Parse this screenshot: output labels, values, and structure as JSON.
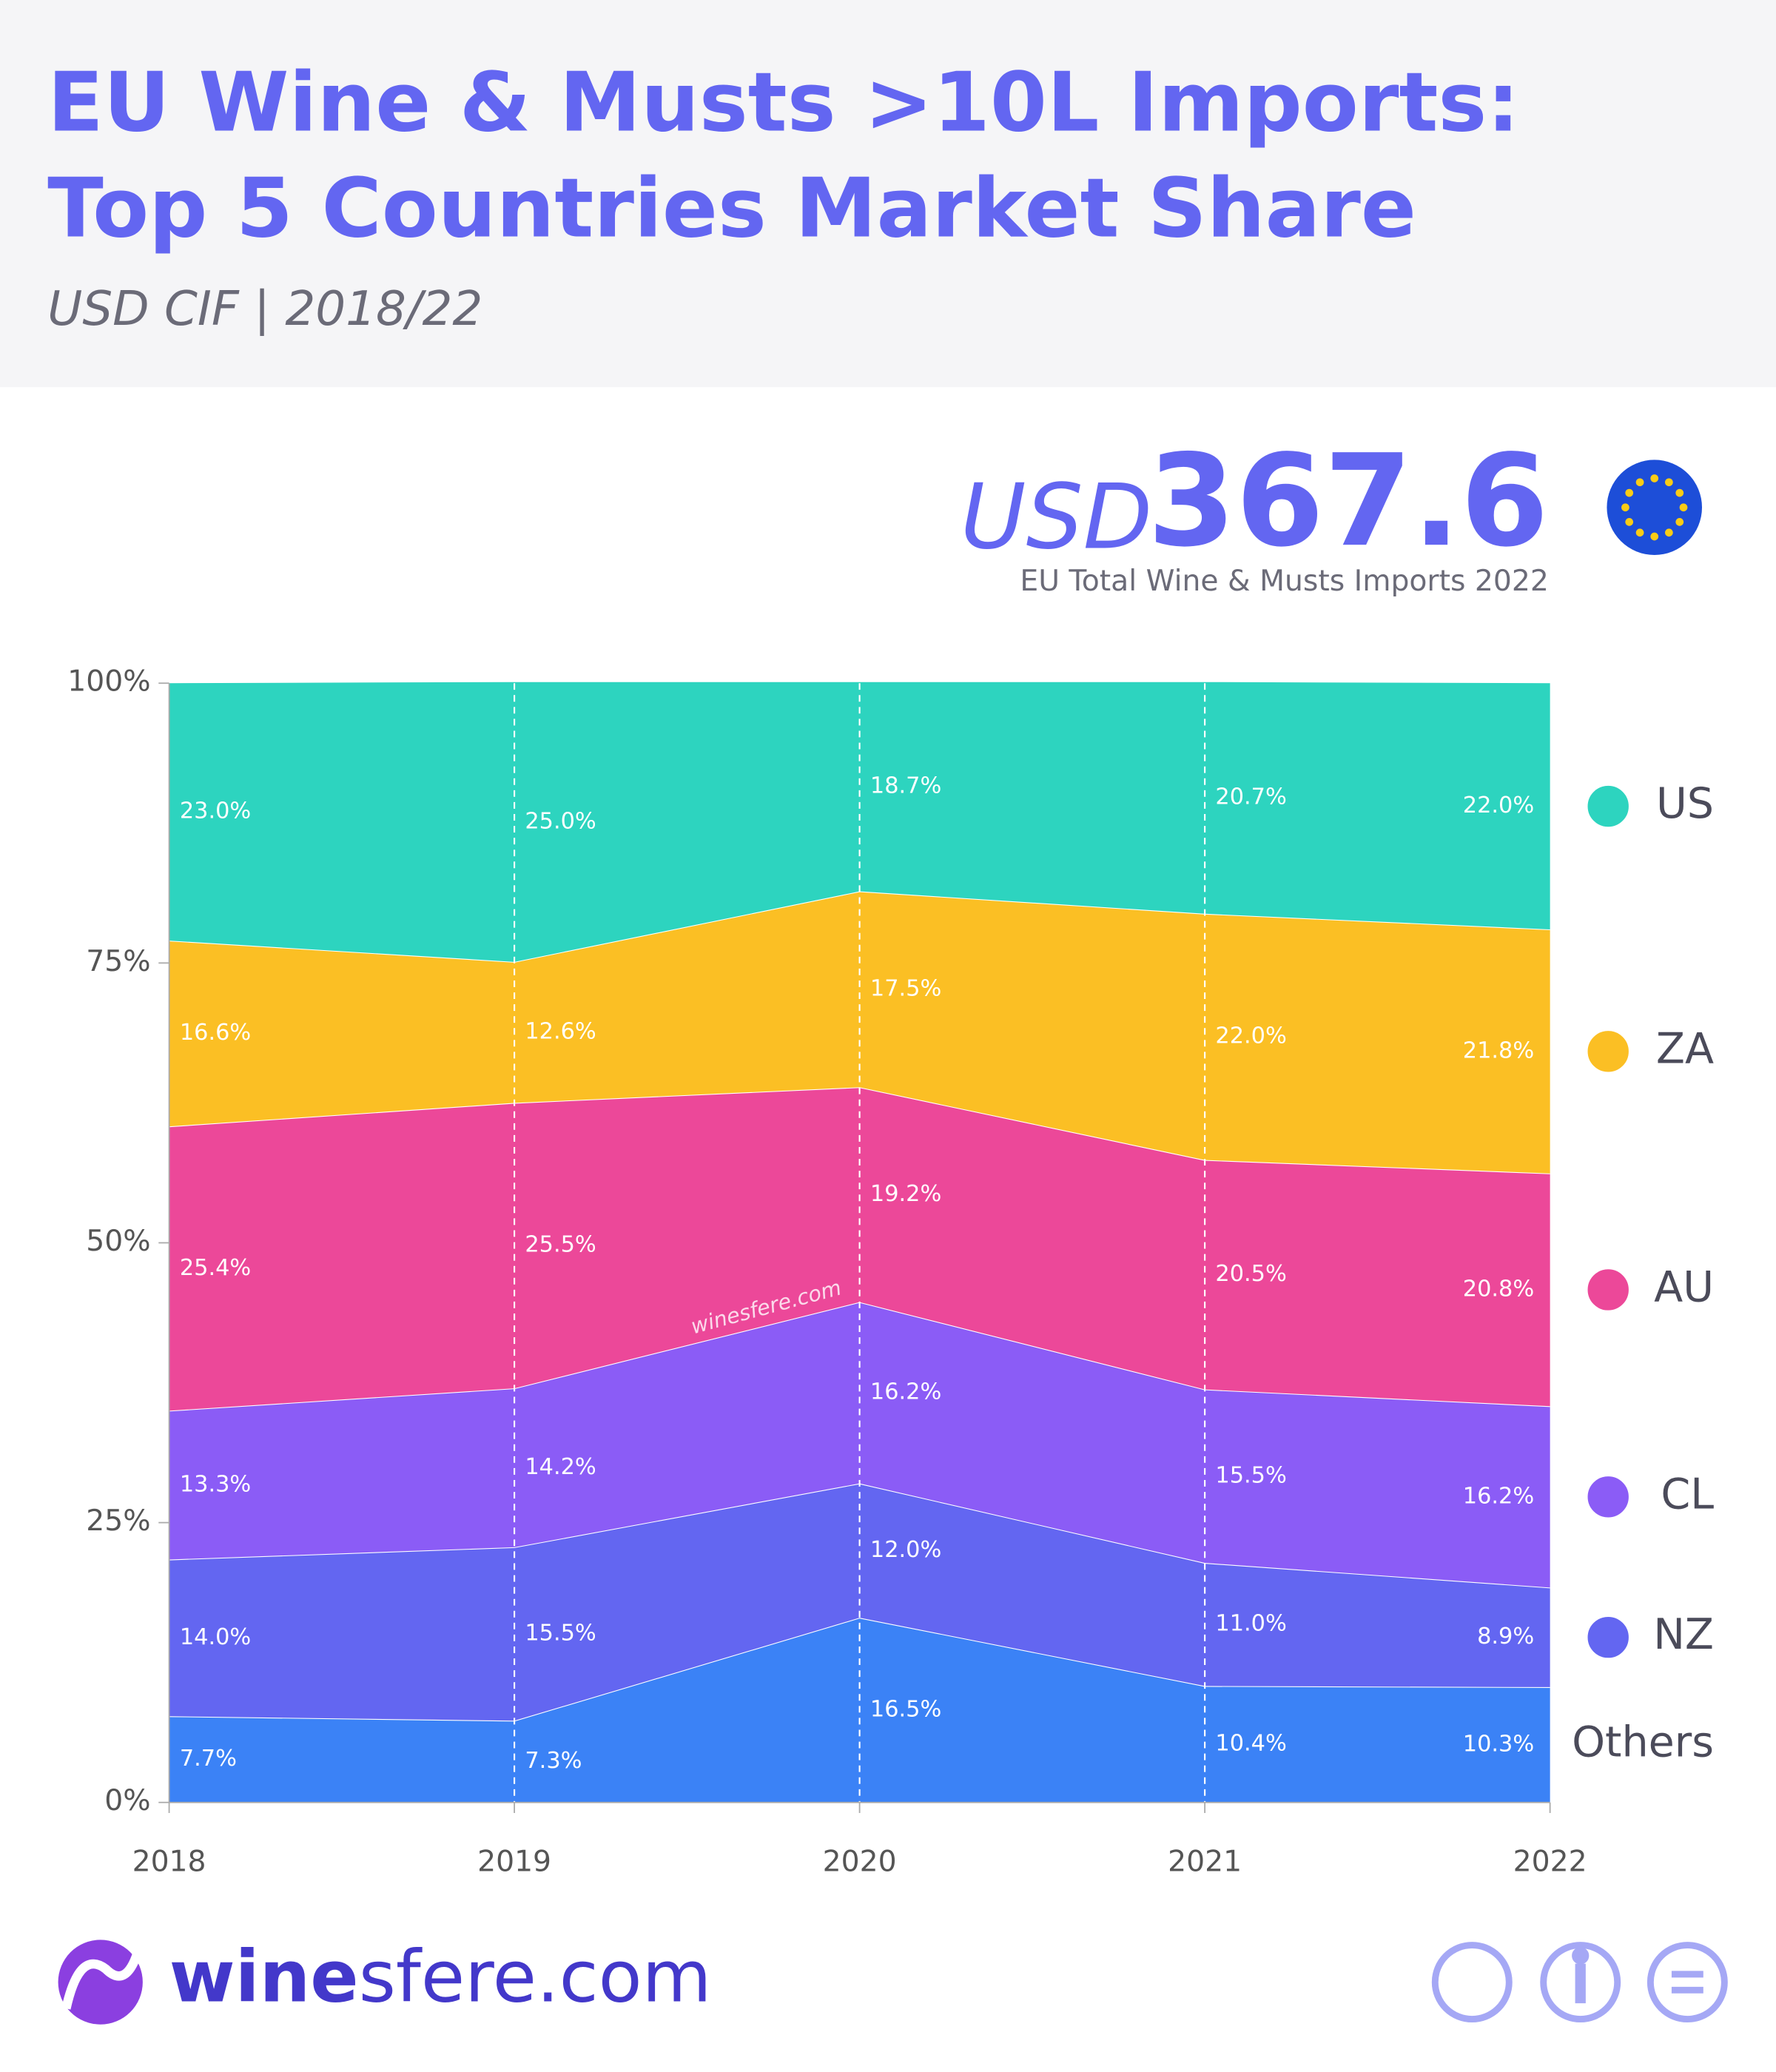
{
  "chart_data": {
    "type": "stacked-area",
    "title": [
      "EU Wine & Musts >10L Imports:",
      "Top 5 Countries Market Share"
    ],
    "subtitle": "USD CIF | 2018/22",
    "headline": {
      "prefix": "USD",
      "value": 367.6,
      "caption": "EU Total Wine & Musts Imports 2022"
    },
    "watermark": "winesfere.com",
    "brand": [
      "wine",
      "sfere.com"
    ],
    "categories": [
      "2018",
      "2019",
      "2020",
      "2021",
      "2022"
    ],
    "ylim": [
      0,
      100
    ],
    "yticks": [
      {
        "value": 0,
        "label": "0%"
      },
      {
        "value": 25,
        "label": "25%"
      },
      {
        "value": 50,
        "label": "50%"
      },
      {
        "value": 75,
        "label": "75%"
      },
      {
        "value": 100,
        "label": "100%"
      }
    ],
    "grid": true,
    "series": [
      {
        "name": "Others",
        "color": "#3b82f6",
        "values": [
          7.7,
          7.3,
          16.5,
          10.4,
          10.3
        ],
        "value_labels": [
          "7.7%",
          "7.3%",
          "16.5%",
          "10.4%",
          "10.3%"
        ]
      },
      {
        "name": "NZ",
        "color": "#6366f1",
        "values": [
          14.0,
          15.5,
          12.0,
          11.0,
          8.9
        ],
        "value_labels": [
          "14.0%",
          "15.5%",
          "12.0%",
          "11.0%",
          "8.9%"
        ]
      },
      {
        "name": "CL",
        "color": "#8b5cf6",
        "values": [
          13.3,
          14.2,
          16.2,
          15.5,
          16.2
        ],
        "value_labels": [
          "13.3%",
          "14.2%",
          "16.2%",
          "15.5%",
          "16.2%"
        ]
      },
      {
        "name": "AU",
        "color": "#ec4899",
        "values": [
          25.4,
          25.5,
          19.2,
          20.5,
          20.8
        ],
        "value_labels": [
          "25.4%",
          "25.5%",
          "19.2%",
          "20.5%",
          "20.8%"
        ]
      },
      {
        "name": "ZA",
        "color": "#fbbf24",
        "values": [
          16.6,
          12.6,
          17.5,
          22.0,
          21.8
        ],
        "value_labels": [
          "16.6%",
          "12.6%",
          "17.5%",
          "22.0%",
          "21.8%"
        ]
      },
      {
        "name": "US",
        "color": "#2dd4bf",
        "values": [
          23.0,
          25.0,
          18.7,
          20.7,
          22.0
        ],
        "value_labels": [
          "23.0%",
          "25.0%",
          "18.7%",
          "20.7%",
          "22.0%"
        ]
      }
    ]
  }
}
